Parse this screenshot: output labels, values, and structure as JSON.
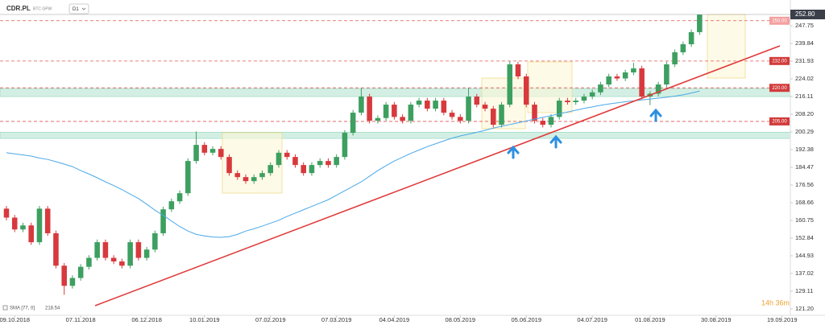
{
  "chart_data": {
    "type": "candlestick",
    "symbol": "CDR.PL",
    "exchange": "BTC GPW",
    "interval": "D1",
    "up_color": "#3d9f60",
    "down_color": "#d7393d",
    "categories": [
      null,
      "09.10.2018",
      null,
      null,
      null,
      null,
      null,
      null,
      null,
      "07.11.2018",
      null,
      null,
      null,
      null,
      null,
      null,
      null,
      "06.12.2018",
      null,
      null,
      null,
      null,
      null,
      null,
      "10.01.2019",
      null,
      null,
      null,
      null,
      null,
      null,
      null,
      "07.02.2019",
      null,
      null,
      null,
      null,
      null,
      null,
      null,
      "07.03.2019",
      null,
      null,
      null,
      null,
      null,
      null,
      "04.04.2019",
      null,
      null,
      null,
      null,
      null,
      null,
      null,
      "08.05.2019",
      null,
      null,
      null,
      null,
      null,
      null,
      null,
      "05.06.2019",
      null,
      null,
      null,
      null,
      null,
      null,
      null,
      "04.07.2019",
      null,
      null,
      null,
      null,
      null,
      null,
      "01.08.2019",
      null,
      null,
      null,
      null,
      null,
      null,
      null,
      "30.08.2019",
      null,
      null,
      null,
      null,
      null,
      null,
      null,
      "19.09.2019"
    ],
    "candles": [
      [
        166,
        167.2,
        160.8,
        162
      ],
      [
        162,
        163.2,
        155.5,
        156.7
      ],
      [
        156.7,
        159.7,
        155.5,
        158.5
      ],
      [
        158.5,
        159.7,
        149.8,
        151
      ],
      [
        151,
        167.2,
        149.8,
        166
      ],
      [
        166,
        167.2,
        153.8,
        155
      ],
      [
        155,
        156.2,
        139.3,
        140.5
      ],
      [
        140.5,
        141.7,
        127.5,
        131.5
      ],
      [
        131.5,
        136.2,
        130.3,
        135
      ],
      [
        135,
        141.2,
        133.8,
        140
      ],
      [
        140,
        145.2,
        138.8,
        144
      ],
      [
        144,
        152.2,
        142.8,
        151
      ],
      [
        151,
        152.2,
        142.8,
        144
      ],
      [
        144,
        145.2,
        141.2,
        142.4
      ],
      [
        142.4,
        143.6,
        139.3,
        140.5
      ],
      [
        140.5,
        152.2,
        139.3,
        151
      ],
      [
        151,
        152.2,
        142.8,
        144
      ],
      [
        144,
        148.9,
        142.8,
        147.7
      ],
      [
        147.7,
        156.2,
        146.5,
        155
      ],
      [
        155,
        166.9,
        153.8,
        165.7
      ],
      [
        165.7,
        170.5,
        164.5,
        169.3
      ],
      [
        169.3,
        174.1,
        168.1,
        172.9
      ],
      [
        172.9,
        188.5,
        171.7,
        187.3
      ],
      [
        187.3,
        200.5,
        186.1,
        194.5
      ],
      [
        194.5,
        195.7,
        189.8,
        191
      ],
      [
        191,
        193.9,
        189.8,
        192.7
      ],
      [
        192.7,
        193.9,
        187.9,
        189.1
      ],
      [
        189.1,
        190.3,
        180.7,
        181.9
      ],
      [
        181.9,
        183.1,
        178.9,
        180.1
      ],
      [
        180.1,
        181.3,
        177.1,
        178.3
      ],
      [
        178.3,
        181.3,
        177.1,
        180.1
      ],
      [
        180.1,
        183.1,
        178.9,
        181.9
      ],
      [
        181.9,
        186.7,
        180.7,
        185.5
      ],
      [
        185.5,
        192.2,
        184.3,
        191
      ],
      [
        191,
        192.2,
        187.9,
        189.1
      ],
      [
        189.1,
        190.3,
        184.3,
        185.5
      ],
      [
        185.5,
        186.7,
        180.7,
        181.9
      ],
      [
        181.9,
        186.7,
        180.7,
        185.5
      ],
      [
        185.5,
        188.5,
        184.3,
        187.3
      ],
      [
        187.3,
        188.5,
        184.3,
        185.5
      ],
      [
        185.5,
        190.3,
        184.3,
        189.1
      ],
      [
        189.1,
        201.1,
        187.9,
        199.9
      ],
      [
        199.9,
        210.1,
        198.7,
        208.9
      ],
      [
        208.9,
        219.9,
        207.7,
        216.1
      ],
      [
        216.1,
        217.3,
        204.1,
        205.3
      ],
      [
        205.3,
        207.7,
        204.1,
        206.5
      ],
      [
        206.5,
        213.7,
        205.3,
        212.5
      ],
      [
        212.5,
        213.7,
        205.8,
        207
      ],
      [
        207,
        208.2,
        204.1,
        205.3
      ],
      [
        205.3,
        213.7,
        204.1,
        212.5
      ],
      [
        212.5,
        215.5,
        211.3,
        214.3
      ],
      [
        214.3,
        215.5,
        209.5,
        210.7
      ],
      [
        210.7,
        215.5,
        209.5,
        214.3
      ],
      [
        214.3,
        215.5,
        207.7,
        208.9
      ],
      [
        208.9,
        210.1,
        205.8,
        207
      ],
      [
        207,
        208.2,
        204.1,
        205.3
      ],
      [
        205.3,
        219.9,
        204.1,
        216.1
      ],
      [
        216.1,
        217.3,
        211.3,
        212.5
      ],
      [
        212.5,
        213.7,
        209.5,
        210.7
      ],
      [
        210.7,
        211.9,
        202.3,
        203.5
      ],
      [
        203.5,
        213.7,
        202.3,
        212.5
      ],
      [
        212.5,
        231.9,
        211.3,
        230.5
      ],
      [
        230.5,
        231.7,
        223.9,
        225.1
      ],
      [
        225.1,
        226.3,
        211.3,
        212.5
      ],
      [
        212.5,
        213.7,
        204.1,
        205.3
      ],
      [
        205.3,
        206.5,
        202.3,
        203.5
      ],
      [
        203.5,
        208.2,
        202.3,
        207
      ],
      [
        207,
        215.5,
        205.8,
        214.3
      ],
      [
        214.3,
        215.5,
        212.5,
        213.6
      ],
      [
        213.6,
        215.5,
        212.4,
        214.3
      ],
      [
        214.3,
        217.3,
        213.1,
        216.1
      ],
      [
        216.1,
        219.2,
        214.9,
        218
      ],
      [
        218,
        222.7,
        216.8,
        221.5
      ],
      [
        221.5,
        226.3,
        220.3,
        225.1
      ],
      [
        225.1,
        226.3,
        223.1,
        224.2
      ],
      [
        224.2,
        228.1,
        223,
        226.9
      ],
      [
        226.9,
        231.2,
        225.7,
        228.7
      ],
      [
        228.7,
        229.9,
        214.9,
        216.1
      ],
      [
        216.1,
        218.5,
        212.3,
        217.4
      ],
      [
        217.4,
        222.7,
        216.2,
        221.5
      ],
      [
        221.5,
        231.7,
        220.3,
        230.5
      ],
      [
        230.5,
        237.1,
        229.3,
        235.9
      ],
      [
        235.9,
        240.7,
        234.7,
        239.5
      ],
      [
        239.5,
        246.1,
        238.3,
        244.9
      ],
      [
        244.9,
        252.8,
        243.7,
        252.8
      ],
      null,
      null,
      null,
      null,
      null,
      null,
      null,
      null,
      null,
      null
    ],
    "sma": {
      "name": "SMA [77, 0]",
      "value_label": "218.54",
      "color": "#4aa8e8",
      "values": [
        191,
        190.5,
        190,
        189.5,
        188.6,
        188,
        187,
        185.9,
        184.8,
        183,
        181.5,
        179.8,
        178,
        176.3,
        174.5,
        172.5,
        170.5,
        168,
        165.3,
        163,
        160.5,
        158,
        156,
        154.5,
        153.8,
        153.3,
        153.2,
        153.5,
        154.5,
        156,
        157,
        158.2,
        159.5,
        160.8,
        162.5,
        164,
        165.5,
        167,
        168.5,
        170,
        172,
        174,
        176,
        178,
        180.5,
        183,
        185.2,
        187.3,
        189,
        190.7,
        192.2,
        193.7,
        195,
        196.3,
        197.5,
        198.5,
        199.3,
        200.1,
        201,
        202,
        202.8,
        203.6,
        204.4,
        205.2,
        206,
        206.8,
        207.6,
        208.4,
        209.2,
        210,
        210.8,
        211.5,
        212.2,
        212.8,
        213.3,
        213.8,
        214.2,
        214.6,
        215,
        215.4,
        215.8,
        216.3,
        216.9,
        217.7,
        218.54,
        null,
        null,
        null,
        null,
        null,
        null,
        null,
        null,
        null,
        null
      ]
    },
    "ylim": [
      118.3,
      252.8
    ],
    "yticks": [
      247.75,
      239.84,
      231.93,
      224.02,
      216.11,
      {
        "value": 208.2,
        "label": "208.20"
      },
      200.29,
      192.38,
      184.47,
      176.56,
      168.66,
      160.75,
      152.84,
      144.93,
      137.02,
      129.11,
      {
        "value": 121.2,
        "label": "121.20"
      }
    ],
    "last_price": {
      "value": 252.8,
      "label": "252.80"
    },
    "levels": [
      {
        "value": 250,
        "label": "250.00"
      },
      {
        "value": 232,
        "label": "232.00"
      },
      {
        "value": 220,
        "label": "220.00"
      },
      {
        "value": 205,
        "label": "205.00"
      }
    ],
    "zones": [
      [
        216.1,
        219.7
      ],
      [
        197.4,
        200.2
      ]
    ],
    "countdown": "14h 36m"
  }
}
